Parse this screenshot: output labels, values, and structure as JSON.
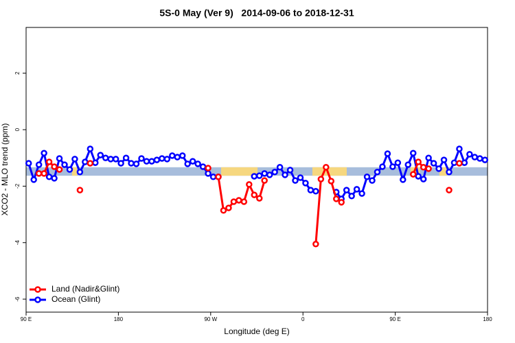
{
  "chart_data": {
    "type": "line",
    "title": "5S-0 May (Ver 9)   2014-09-06 to 2018-12-31",
    "x_label": "Longitude (deg E)",
    "y_label": "XCO2 - MLO trend (ppm)",
    "xlim": [
      90,
      540
    ],
    "xticks": [
      {
        "value": 90,
        "label": "90 E"
      },
      {
        "value": 180,
        "label": "180"
      },
      {
        "value": 270,
        "label": "90 W"
      },
      {
        "value": 360,
        "label": "0"
      },
      {
        "value": 450,
        "label": "90 E"
      },
      {
        "value": 540,
        "label": "180"
      }
    ],
    "ylim": [
      -6.46,
      3.62
    ],
    "yticks": [
      2,
      0,
      -2,
      -4,
      -6
    ],
    "band": {
      "ylim": [
        -1.63,
        -1.33
      ],
      "color": "#a7bddc",
      "land_color": "#f6d77f",
      "land_segments": [
        [
          134.9,
          139.6
        ],
        [
          280.2,
          315.7
        ],
        [
          369.2,
          402.7
        ],
        [
          465,
          474
        ],
        [
          493,
          500
        ]
      ]
    },
    "legend": "bottom-left",
    "series": [
      {
        "name": "Land (Nadir&Glint)",
        "color": "#ff0000",
        "x": [
          102.5,
          107.5,
          112.5,
          117.5,
          122.5,
          127.5,
          142.5,
          147.5,
          152.5,
          157.5,
          267.5,
          272.5,
          277.5,
          282.5,
          287.5,
          292.5,
          297.5,
          302.5,
          307.5,
          312.5,
          317.5,
          322.5,
          327.5,
          372.5,
          377.5,
          382.5,
          387.5,
          392.5,
          397.5,
          402.5,
          467.5,
          472.5,
          477.5,
          482.5,
          487.5,
          502.5,
          507.5,
          512.5
        ],
        "values": [
          -1.55,
          -1.55,
          -1.14,
          -1.31,
          -1.41,
          null,
          -2.14,
          null,
          -1.19,
          null,
          -1.36,
          null,
          -1.67,
          -2.86,
          -2.77,
          -2.55,
          -2.5,
          -2.55,
          -1.94,
          -2.31,
          -2.43,
          -1.8,
          null,
          -4.05,
          -1.75,
          -1.33,
          -1.82,
          -2.45,
          -2.57,
          null,
          -1.58,
          -1.14,
          -1.33,
          -1.38,
          null,
          -2.14,
          null,
          -1.19
        ]
      },
      {
        "name": "Ocean (Glint)",
        "color": "#0000ff",
        "x": [
          92.5,
          97.5,
          102.5,
          107.5,
          112.5,
          117.5,
          122.5,
          127.5,
          132.5,
          137.5,
          142.5,
          147.5,
          152.5,
          157.5,
          162.5,
          167.5,
          172.5,
          177.5,
          182.5,
          187.5,
          192.5,
          197.5,
          202.5,
          207.5,
          212.5,
          217.5,
          222.5,
          227.5,
          232.5,
          237.5,
          242.5,
          247.5,
          252.5,
          257.5,
          262.5,
          267.5,
          272.5,
          277.5,
          282.5,
          312.5,
          317.5,
          322.5,
          327.5,
          332.5,
          337.5,
          342.5,
          347.5,
          352.5,
          357.5,
          362.5,
          367.5,
          372.5,
          377.5,
          392.5,
          397.5,
          402.5,
          407.5,
          412.5,
          417.5,
          422.5,
          427.5,
          432.5,
          437.5,
          442.5,
          447.5,
          452.5,
          457.5,
          462.5,
          467.5,
          472.5,
          477.5,
          482.5,
          487.5,
          492.5,
          497.5,
          502.5,
          507.5,
          512.5,
          517.5,
          522.5,
          527.5,
          532.5,
          537.5
        ],
        "values": [
          -1.19,
          -1.77,
          -1.24,
          -0.83,
          -1.67,
          -1.72,
          -1.02,
          -1.24,
          -1.41,
          -1.04,
          -1.5,
          -1.14,
          -0.68,
          -1.17,
          -0.9,
          -1.0,
          -1.04,
          -1.04,
          -1.19,
          -1.0,
          -1.19,
          -1.21,
          -1.02,
          -1.12,
          -1.12,
          -1.07,
          -1.02,
          -1.04,
          -0.92,
          -0.97,
          -0.92,
          -1.21,
          -1.12,
          -1.21,
          -1.31,
          -1.55,
          -1.67,
          -1.67,
          null,
          -1.65,
          -1.63,
          -1.55,
          -1.6,
          -1.5,
          -1.33,
          -1.6,
          -1.43,
          -1.8,
          -1.7,
          -1.89,
          -2.14,
          -2.18,
          null,
          -2.21,
          -2.45,
          -2.14,
          -2.35,
          -2.11,
          -2.26,
          -1.67,
          -1.8,
          -1.5,
          -1.31,
          -0.85,
          -1.31,
          -1.17,
          -1.77,
          -1.24,
          -0.83,
          -1.65,
          -1.75,
          -1.0,
          -1.19,
          -1.38,
          -1.07,
          -1.5,
          -1.17,
          -0.68,
          -1.17,
          -0.87,
          -0.97,
          -1.02,
          -1.07
        ]
      }
    ]
  }
}
